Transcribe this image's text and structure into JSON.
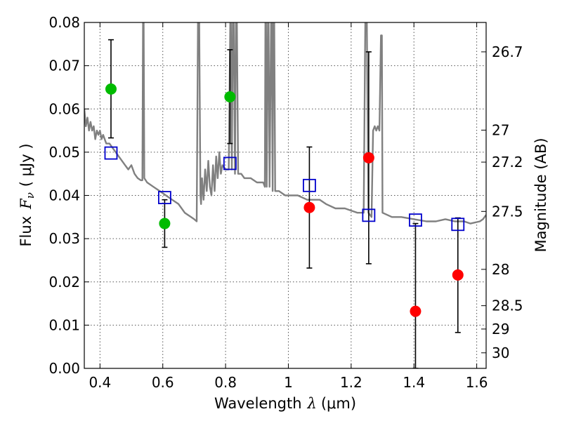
{
  "chart_data": {
    "type": "scatter",
    "title": "",
    "xlabel": {
      "text": "Wavelength",
      "symbol": "λ",
      "unit": "(μm)"
    },
    "ylabel": {
      "text": "Flux",
      "symbol": "F",
      "subscript": "ν",
      "unit": "( μJy )"
    },
    "y2label": "Magnitude (AB)",
    "xlim": [
      0.35,
      1.63
    ],
    "ylim": [
      0.0,
      0.08
    ],
    "grid": true,
    "xticks": [
      0.4,
      0.6,
      0.8,
      1.0,
      1.2,
      1.4,
      1.6
    ],
    "xtick_labels": [
      "0.4",
      "0.6",
      "0.8",
      "1",
      "1.2",
      "1.4",
      "1.6"
    ],
    "yticks": [
      0.0,
      0.01,
      0.02,
      0.03,
      0.04,
      0.05,
      0.06,
      0.07,
      0.08
    ],
    "ytick_labels": [
      "0.00",
      "0.01",
      "0.02",
      "0.03",
      "0.04",
      "0.05",
      "0.06",
      "0.07",
      "0.08"
    ],
    "y2ticks": [
      {
        "flux": 0.0732,
        "label": "26.7"
      },
      {
        "flux": 0.0551,
        "label": "27"
      },
      {
        "flux": 0.0477,
        "label": "27.2"
      },
      {
        "flux": 0.0363,
        "label": "27.5"
      },
      {
        "flux": 0.0229,
        "label": "28"
      },
      {
        "flux": 0.0145,
        "label": "28.5"
      },
      {
        "flux": 0.0091,
        "label": "29"
      },
      {
        "flux": 0.0036,
        "label": "30"
      }
    ],
    "colors": {
      "green": "#00bb00",
      "red": "#ff0000",
      "model_square": "#0000cc",
      "template": "#808080",
      "errorbar": "#000000",
      "grid": "#555555"
    },
    "series": [
      {
        "marker": "circle",
        "color": "green",
        "points": [
          {
            "x": 0.435,
            "y": 0.0646,
            "yerr_low": 0.0533,
            "yerr_high": 0.076
          },
          {
            "x": 0.606,
            "y": 0.0335,
            "yerr_low": 0.028,
            "yerr_high": 0.039
          },
          {
            "x": 0.814,
            "y": 0.0628,
            "yerr_low": 0.052,
            "yerr_high": 0.0737
          }
        ]
      },
      {
        "marker": "circle",
        "color": "red",
        "points": [
          {
            "x": 1.067,
            "y": 0.0372,
            "yerr_low": 0.0232,
            "yerr_high": 0.0512
          },
          {
            "x": 1.256,
            "y": 0.0487,
            "yerr_low": 0.0242,
            "yerr_high": 0.0732
          },
          {
            "x": 1.405,
            "y": 0.0132,
            "yerr_low": 0.0,
            "yerr_high": 0.0335
          },
          {
            "x": 1.54,
            "y": 0.0216,
            "yerr_low": 0.0083,
            "yerr_high": 0.0348
          }
        ]
      },
      {
        "marker": "open-square",
        "color": "model_square",
        "points": [
          {
            "x": 0.435,
            "y": 0.0498
          },
          {
            "x": 0.606,
            "y": 0.0395
          },
          {
            "x": 0.814,
            "y": 0.0474
          },
          {
            "x": 1.067,
            "y": 0.0423
          },
          {
            "x": 1.256,
            "y": 0.0354
          },
          {
            "x": 1.405,
            "y": 0.0343
          },
          {
            "x": 1.54,
            "y": 0.0333
          }
        ]
      },
      {
        "line": true,
        "color": "template",
        "points": [
          [
            0.35,
            0.06
          ],
          [
            0.355,
            0.056
          ],
          [
            0.36,
            0.058
          ],
          [
            0.365,
            0.055
          ],
          [
            0.37,
            0.057
          ],
          [
            0.375,
            0.055
          ],
          [
            0.38,
            0.056
          ],
          [
            0.385,
            0.053
          ],
          [
            0.39,
            0.055
          ],
          [
            0.395,
            0.054
          ],
          [
            0.4,
            0.055
          ],
          [
            0.405,
            0.053
          ],
          [
            0.41,
            0.054
          ],
          [
            0.42,
            0.052
          ],
          [
            0.43,
            0.052
          ],
          [
            0.45,
            0.05
          ],
          [
            0.47,
            0.048
          ],
          [
            0.48,
            0.047
          ],
          [
            0.49,
            0.046
          ],
          [
            0.5,
            0.047
          ],
          [
            0.51,
            0.045
          ],
          [
            0.52,
            0.044
          ],
          [
            0.53,
            0.0435
          ],
          [
            0.535,
            0.0435
          ],
          [
            0.537,
            0.08
          ],
          [
            0.539,
            0.08
          ],
          [
            0.541,
            0.044
          ],
          [
            0.55,
            0.043
          ],
          [
            0.57,
            0.042
          ],
          [
            0.59,
            0.041
          ],
          [
            0.61,
            0.04
          ],
          [
            0.63,
            0.039
          ],
          [
            0.65,
            0.038
          ],
          [
            0.67,
            0.036
          ],
          [
            0.69,
            0.035
          ],
          [
            0.7,
            0.0345
          ],
          [
            0.708,
            0.034
          ],
          [
            0.712,
            0.08
          ],
          [
            0.716,
            0.08
          ],
          [
            0.72,
            0.04
          ],
          [
            0.722,
            0.038
          ],
          [
            0.725,
            0.044
          ],
          [
            0.73,
            0.039
          ],
          [
            0.735,
            0.046
          ],
          [
            0.74,
            0.041
          ],
          [
            0.745,
            0.048
          ],
          [
            0.75,
            0.042
          ],
          [
            0.755,
            0.04
          ],
          [
            0.76,
            0.047
          ],
          [
            0.765,
            0.041
          ],
          [
            0.77,
            0.049
          ],
          [
            0.775,
            0.044
          ],
          [
            0.78,
            0.05
          ],
          [
            0.785,
            0.045
          ],
          [
            0.79,
            0.047
          ],
          [
            0.8,
            0.046
          ],
          [
            0.81,
            0.046
          ],
          [
            0.815,
            0.08
          ],
          [
            0.817,
            0.08
          ],
          [
            0.82,
            0.046
          ],
          [
            0.823,
            0.08
          ],
          [
            0.826,
            0.08
          ],
          [
            0.83,
            0.045
          ],
          [
            0.833,
            0.08
          ],
          [
            0.836,
            0.08
          ],
          [
            0.84,
            0.045
          ],
          [
            0.85,
            0.045
          ],
          [
            0.86,
            0.044
          ],
          [
            0.88,
            0.044
          ],
          [
            0.9,
            0.043
          ],
          [
            0.92,
            0.043
          ],
          [
            0.925,
            0.042
          ],
          [
            0.927,
            0.08
          ],
          [
            0.929,
            0.08
          ],
          [
            0.931,
            0.042
          ],
          [
            0.935,
            0.08
          ],
          [
            0.937,
            0.08
          ],
          [
            0.94,
            0.042
          ],
          [
            0.945,
            0.08
          ],
          [
            0.947,
            0.08
          ],
          [
            0.95,
            0.041
          ],
          [
            0.952,
            0.08
          ],
          [
            0.955,
            0.08
          ],
          [
            0.958,
            0.041
          ],
          [
            0.97,
            0.041
          ],
          [
            0.99,
            0.04
          ],
          [
            1.0,
            0.04
          ],
          [
            1.03,
            0.04
          ],
          [
            1.06,
            0.039
          ],
          [
            1.1,
            0.039
          ],
          [
            1.12,
            0.038
          ],
          [
            1.15,
            0.037
          ],
          [
            1.18,
            0.037
          ],
          [
            1.2,
            0.0365
          ],
          [
            1.22,
            0.036
          ],
          [
            1.24,
            0.036
          ],
          [
            1.245,
            0.08
          ],
          [
            1.25,
            0.08
          ],
          [
            1.255,
            0.036
          ],
          [
            1.265,
            0.035
          ],
          [
            1.27,
            0.055
          ],
          [
            1.275,
            0.056
          ],
          [
            1.28,
            0.055
          ],
          [
            1.285,
            0.056
          ],
          [
            1.29,
            0.055
          ],
          [
            1.295,
            0.077
          ],
          [
            1.298,
            0.077
          ],
          [
            1.3,
            0.036
          ],
          [
            1.33,
            0.035
          ],
          [
            1.36,
            0.035
          ],
          [
            1.4,
            0.0345
          ],
          [
            1.44,
            0.034
          ],
          [
            1.47,
            0.034
          ],
          [
            1.5,
            0.0345
          ],
          [
            1.53,
            0.034
          ],
          [
            1.56,
            0.034
          ],
          [
            1.58,
            0.0335
          ],
          [
            1.61,
            0.034
          ],
          [
            1.62,
            0.0345
          ],
          [
            1.63,
            0.0355
          ]
        ]
      }
    ]
  }
}
